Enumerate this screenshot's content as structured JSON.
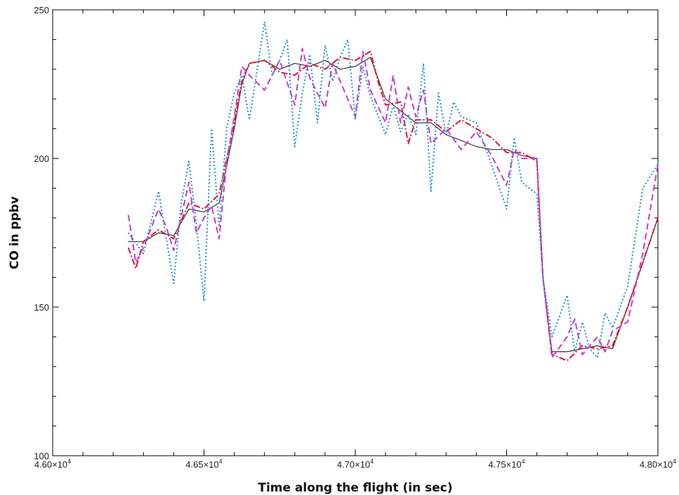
{
  "chart_data": {
    "type": "line",
    "title": "",
    "xlabel": "Time along the flight (in sec)",
    "ylabel": "CO in ppbv",
    "xlim": [
      46000,
      48000
    ],
    "ylim": [
      100,
      250
    ],
    "x_ticks": [
      {
        "value": 46000,
        "label": "4.60×10",
        "exp": "4"
      },
      {
        "value": 46500,
        "label": "4.65×10",
        "exp": "4"
      },
      {
        "value": 47000,
        "label": "4.70×10",
        "exp": "4"
      },
      {
        "value": 47500,
        "label": "4.75×10",
        "exp": "4"
      },
      {
        "value": 48000,
        "label": "4.80×10",
        "exp": "4"
      }
    ],
    "y_ticks": [
      {
        "value": 100,
        "label": "100"
      },
      {
        "value": 150,
        "label": "150"
      },
      {
        "value": 200,
        "label": "200"
      },
      {
        "value": 250,
        "label": "250"
      }
    ],
    "grid": false,
    "series": [
      {
        "color": "#333333",
        "dash": "solid",
        "x": [
          46250,
          46300,
          46350,
          46400,
          46450,
          46500,
          46550,
          46600,
          46625,
          46650,
          46700,
          46750,
          46800,
          46850,
          46900,
          46950,
          47000,
          47050,
          47100,
          47150,
          47200,
          47250,
          47300,
          47350,
          47400,
          47450,
          47500,
          47550,
          47600,
          47620,
          47650,
          47700,
          47750,
          47800,
          47850,
          47900,
          47950,
          48000
        ],
        "y": [
          172,
          172,
          175,
          174,
          183,
          182,
          185,
          210,
          225,
          232,
          233,
          230,
          232,
          231,
          233,
          230,
          231,
          234,
          220,
          216,
          212,
          212,
          208,
          206,
          204,
          203,
          203,
          201,
          200,
          160,
          135,
          135,
          136,
          137,
          136,
          150,
          165,
          180
        ]
      },
      {
        "color": "#e8102a",
        "dash": "dashdot",
        "x": [
          46250,
          46275,
          46300,
          46350,
          46400,
          46450,
          46500,
          46550,
          46600,
          46625,
          46650,
          46700,
          46750,
          46800,
          46850,
          46900,
          46950,
          47000,
          47050,
          47075,
          47100,
          47150,
          47175,
          47200,
          47250,
          47300,
          47350,
          47400,
          47450,
          47500,
          47550,
          47600,
          47620,
          47650,
          47700,
          47750,
          47800,
          47850,
          47900,
          47950,
          48000
        ],
        "y": [
          170,
          163,
          172,
          176,
          173,
          185,
          183,
          188,
          212,
          226,
          232,
          233,
          229,
          228,
          232,
          230,
          234,
          233,
          236,
          226,
          218,
          219,
          205,
          213,
          213,
          209,
          213,
          210,
          207,
          202,
          202,
          199,
          160,
          134,
          132,
          137,
          136,
          137,
          150,
          165,
          180
        ]
      },
      {
        "color": "#c83ad8",
        "dash": "dashed",
        "x": [
          46250,
          46275,
          46300,
          46350,
          46375,
          46400,
          46450,
          46475,
          46500,
          46525,
          46550,
          46575,
          46600,
          46625,
          46650,
          46700,
          46725,
          46750,
          46800,
          46825,
          46850,
          46900,
          46925,
          46950,
          47000,
          47025,
          47050,
          47100,
          47125,
          47150,
          47175,
          47200,
          47225,
          47250,
          47300,
          47350,
          47400,
          47450,
          47500,
          47525,
          47550,
          47600,
          47620,
          47650,
          47700,
          47725,
          47750,
          47800,
          47825,
          47850,
          47900,
          47950,
          48000
        ],
        "y": [
          181,
          165,
          170,
          183,
          177,
          169,
          192,
          175,
          180,
          184,
          173,
          199,
          214,
          231,
          228,
          223,
          228,
          233,
          218,
          237,
          227,
          217,
          232,
          226,
          214,
          236,
          223,
          212,
          228,
          212,
          224,
          214,
          223,
          205,
          210,
          203,
          209,
          201,
          191,
          203,
          200,
          200,
          160,
          133,
          140,
          146,
          134,
          140,
          135,
          142,
          145,
          168,
          198
        ]
      },
      {
        "color": "#1e90d8",
        "dash": "dotted",
        "x": [
          46250,
          46300,
          46350,
          46400,
          46425,
          46450,
          46475,
          46500,
          46525,
          46550,
          46575,
          46600,
          46625,
          46650,
          46700,
          46725,
          46750,
          46775,
          46800,
          46825,
          46850,
          46875,
          46900,
          46925,
          46950,
          46975,
          47000,
          47025,
          47050,
          47100,
          47125,
          47150,
          47175,
          47200,
          47225,
          47250,
          47275,
          47300,
          47325,
          47350,
          47400,
          47450,
          47500,
          47525,
          47550,
          47600,
          47620,
          47650,
          47700,
          47725,
          47750,
          47775,
          47800,
          47825,
          47850,
          47900,
          47950,
          48000
        ],
        "y": [
          175,
          168,
          189,
          158,
          185,
          199,
          178,
          152,
          210,
          177,
          210,
          222,
          228,
          213,
          246,
          228,
          233,
          240,
          204,
          222,
          235,
          212,
          238,
          226,
          234,
          240,
          213,
          231,
          221,
          208,
          218,
          209,
          215,
          208,
          232,
          189,
          222,
          208,
          219,
          214,
          212,
          198,
          183,
          207,
          192,
          188,
          160,
          140,
          154,
          135,
          145,
          136,
          133,
          148,
          143,
          157,
          190,
          198
        ]
      }
    ]
  }
}
